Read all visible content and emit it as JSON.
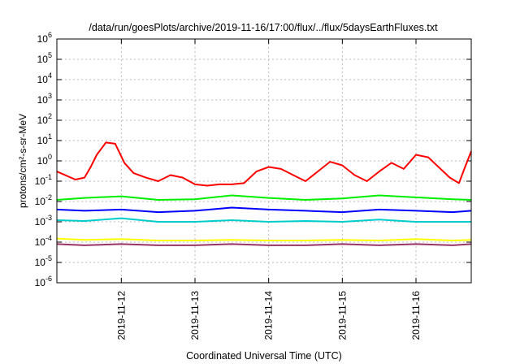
{
  "chart_data": {
    "type": "line",
    "title": "/data/run/goesPlots/archive/2019-11-16/17:00/flux/../flux/5daysEarthFluxes.txt",
    "xlabel": "Coordinated Universal Time (UTC)",
    "ylabel": "protons/cm²-s-sr-MeV",
    "yscale": "log",
    "grid": true,
    "ylim_exp": [
      -6,
      6
    ],
    "xlim": [
      "2019-11-11 03:00",
      "2019-11-16 18:00"
    ],
    "x_ticks": [
      {
        "date": "2019-11-12",
        "label": "2019-11-12"
      },
      {
        "date": "2019-11-13",
        "label": "2019-11-13"
      },
      {
        "date": "2019-11-14",
        "label": "2019-11-14"
      },
      {
        "date": "2019-11-15",
        "label": "2019-11-15"
      },
      {
        "date": "2019-11-16",
        "label": "2019-11-16"
      }
    ],
    "series": [
      {
        "color": "#ff0000",
        "x": [
          "2019-11-11 03:00",
          "2019-11-11 09:00",
          "2019-11-11 12:00",
          "2019-11-11 14:00",
          "2019-11-11 16:00",
          "2019-11-11 19:00",
          "2019-11-11 22:00",
          "2019-11-12 01:00",
          "2019-11-12 04:00",
          "2019-11-12 08:00",
          "2019-11-12 12:00",
          "2019-11-12 16:00",
          "2019-11-12 20:00",
          "2019-11-13 00:00",
          "2019-11-13 04:00",
          "2019-11-13 08:00",
          "2019-11-13 12:00",
          "2019-11-13 16:00",
          "2019-11-13 20:00",
          "2019-11-14 00:00",
          "2019-11-14 04:00",
          "2019-11-14 08:00",
          "2019-11-14 12:00",
          "2019-11-14 16:00",
          "2019-11-14 20:00",
          "2019-11-15 00:00",
          "2019-11-15 04:00",
          "2019-11-15 08:00",
          "2019-11-15 12:00",
          "2019-11-15 16:00",
          "2019-11-15 20:00",
          "2019-11-16 00:00",
          "2019-11-16 04:00",
          "2019-11-16 08:00",
          "2019-11-16 11:00",
          "2019-11-16 14:00",
          "2019-11-16 16:00",
          "2019-11-16 18:00"
        ],
        "y": [
          0.3,
          0.12,
          0.15,
          0.5,
          2,
          8,
          7,
          0.8,
          0.25,
          0.15,
          0.1,
          0.2,
          0.15,
          0.07,
          0.06,
          0.07,
          0.07,
          0.08,
          0.3,
          0.5,
          0.4,
          0.2,
          0.1,
          0.3,
          0.9,
          0.6,
          0.2,
          0.1,
          0.3,
          0.8,
          0.4,
          2,
          1.5,
          0.4,
          0.15,
          0.08,
          0.5,
          3
        ]
      },
      {
        "color": "#00ee00",
        "x": [
          "2019-11-11 03:00",
          "2019-11-11 12:00",
          "2019-11-12 00:00",
          "2019-11-12 12:00",
          "2019-11-13 00:00",
          "2019-11-13 12:00",
          "2019-11-14 00:00",
          "2019-11-14 12:00",
          "2019-11-15 00:00",
          "2019-11-15 12:00",
          "2019-11-16 00:00",
          "2019-11-16 12:00",
          "2019-11-16 18:00"
        ],
        "y": [
          0.012,
          0.015,
          0.018,
          0.012,
          0.013,
          0.02,
          0.015,
          0.012,
          0.014,
          0.02,
          0.016,
          0.013,
          0.012
        ]
      },
      {
        "color": "#00cccc",
        "x": [
          "2019-11-11 03:00",
          "2019-11-11 12:00",
          "2019-11-12 00:00",
          "2019-11-12 12:00",
          "2019-11-13 00:00",
          "2019-11-13 12:00",
          "2019-11-14 00:00",
          "2019-11-14 12:00",
          "2019-11-15 00:00",
          "2019-11-15 12:00",
          "2019-11-16 00:00",
          "2019-11-16 12:00",
          "2019-11-16 18:00"
        ],
        "y": [
          0.0012,
          0.0011,
          0.0015,
          0.001,
          0.001,
          0.0012,
          0.001,
          0.0011,
          0.001,
          0.0013,
          0.001,
          0.001,
          0.001
        ]
      },
      {
        "color": "#0000ff",
        "x": [
          "2019-11-11 03:00",
          "2019-11-11 12:00",
          "2019-11-12 00:00",
          "2019-11-12 12:00",
          "2019-11-13 00:00",
          "2019-11-13 12:00",
          "2019-11-14 00:00",
          "2019-11-14 12:00",
          "2019-11-15 00:00",
          "2019-11-15 12:00",
          "2019-11-16 00:00",
          "2019-11-16 12:00",
          "2019-11-16 18:00"
        ],
        "y": [
          0.004,
          0.0035,
          0.004,
          0.003,
          0.0035,
          0.005,
          0.004,
          0.0035,
          0.003,
          0.004,
          0.0035,
          0.003,
          0.0035
        ]
      },
      {
        "color": "#ffff00",
        "x": [
          "2019-11-11 03:00",
          "2019-11-11 12:00",
          "2019-11-12 00:00",
          "2019-11-12 12:00",
          "2019-11-13 00:00",
          "2019-11-13 12:00",
          "2019-11-14 00:00",
          "2019-11-14 12:00",
          "2019-11-15 00:00",
          "2019-11-15 12:00",
          "2019-11-16 00:00",
          "2019-11-16 12:00",
          "2019-11-16 18:00"
        ],
        "y": [
          0.00015,
          0.00013,
          0.00014,
          0.00012,
          0.00012,
          0.00013,
          0.00012,
          0.00012,
          0.00013,
          0.00012,
          0.00014,
          0.00012,
          0.00013
        ]
      },
      {
        "color": "#993366",
        "x": [
          "2019-11-11 03:00",
          "2019-11-11 12:00",
          "2019-11-12 00:00",
          "2019-11-12 12:00",
          "2019-11-13 00:00",
          "2019-11-13 12:00",
          "2019-11-14 00:00",
          "2019-11-14 12:00",
          "2019-11-15 00:00",
          "2019-11-15 12:00",
          "2019-11-16 00:00",
          "2019-11-16 12:00",
          "2019-11-16 18:00"
        ],
        "y": [
          8e-05,
          7e-05,
          8e-05,
          7e-05,
          7e-05,
          8e-05,
          7e-05,
          7e-05,
          8e-05,
          7e-05,
          8e-05,
          7e-05,
          8e-05
        ]
      }
    ]
  }
}
